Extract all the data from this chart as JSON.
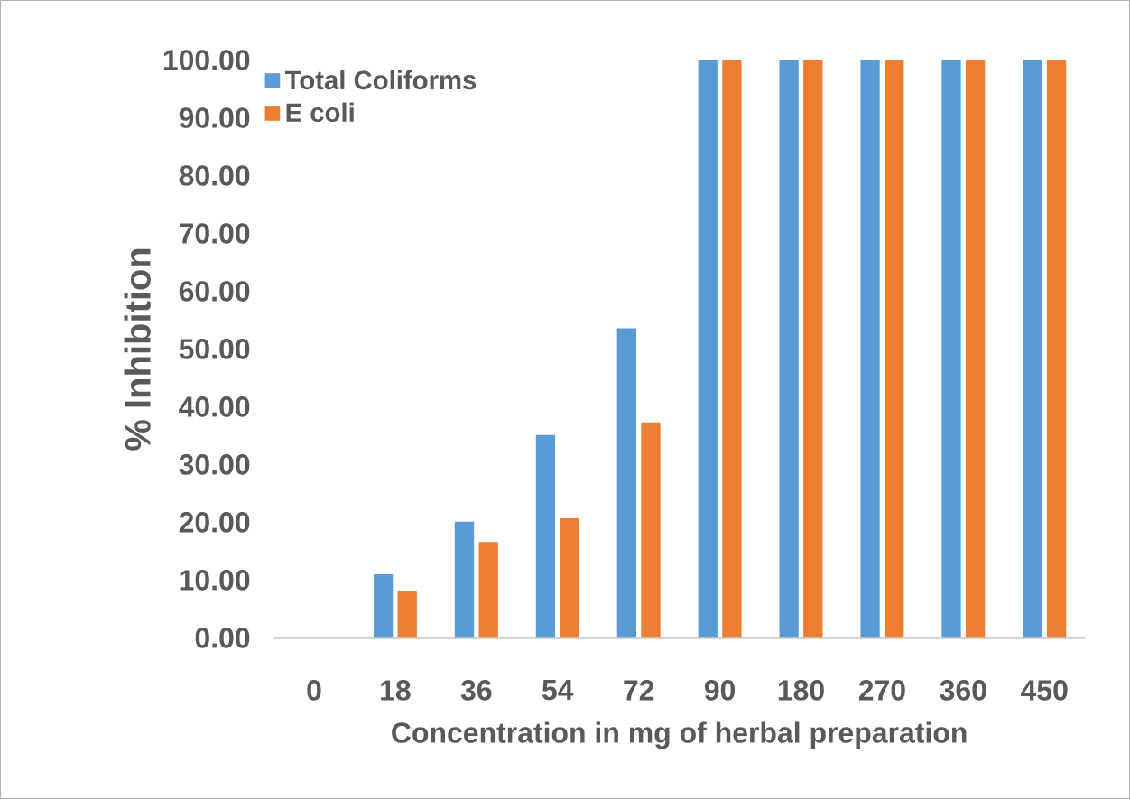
{
  "chart_data": {
    "type": "bar",
    "xlabel": "Concentration in mg of herbal preparation",
    "ylabel": "% Inhibition",
    "categories": [
      "0",
      "18",
      "36",
      "54",
      "72",
      "90",
      "180",
      "270",
      "360",
      "450"
    ],
    "series": [
      {
        "name": "Total Coliforms",
        "color": "#5b9bd5",
        "values": [
          0,
          11.0,
          20.1,
          35.1,
          53.6,
          100,
          100,
          100,
          100,
          100
        ]
      },
      {
        "name": "E coli",
        "color": "#ed7d31",
        "values": [
          0,
          8.2,
          16.6,
          20.7,
          37.3,
          100,
          100,
          100,
          100,
          100
        ]
      }
    ],
    "ylim": [
      0,
      100
    ],
    "yticks": [
      {
        "value": 0,
        "label": "0.00"
      },
      {
        "value": 10,
        "label": "10.00"
      },
      {
        "value": 20,
        "label": "20.00"
      },
      {
        "value": 30,
        "label": "30.00"
      },
      {
        "value": 40,
        "label": "40.00"
      },
      {
        "value": 50,
        "label": "50.00"
      },
      {
        "value": 60,
        "label": "60.00"
      },
      {
        "value": 70,
        "label": "70.00"
      },
      {
        "value": 80,
        "label": "80.00"
      },
      {
        "value": 90,
        "label": "90.00"
      },
      {
        "value": 100,
        "label": "100.00"
      }
    ],
    "grid": false,
    "legend": "top left"
  }
}
